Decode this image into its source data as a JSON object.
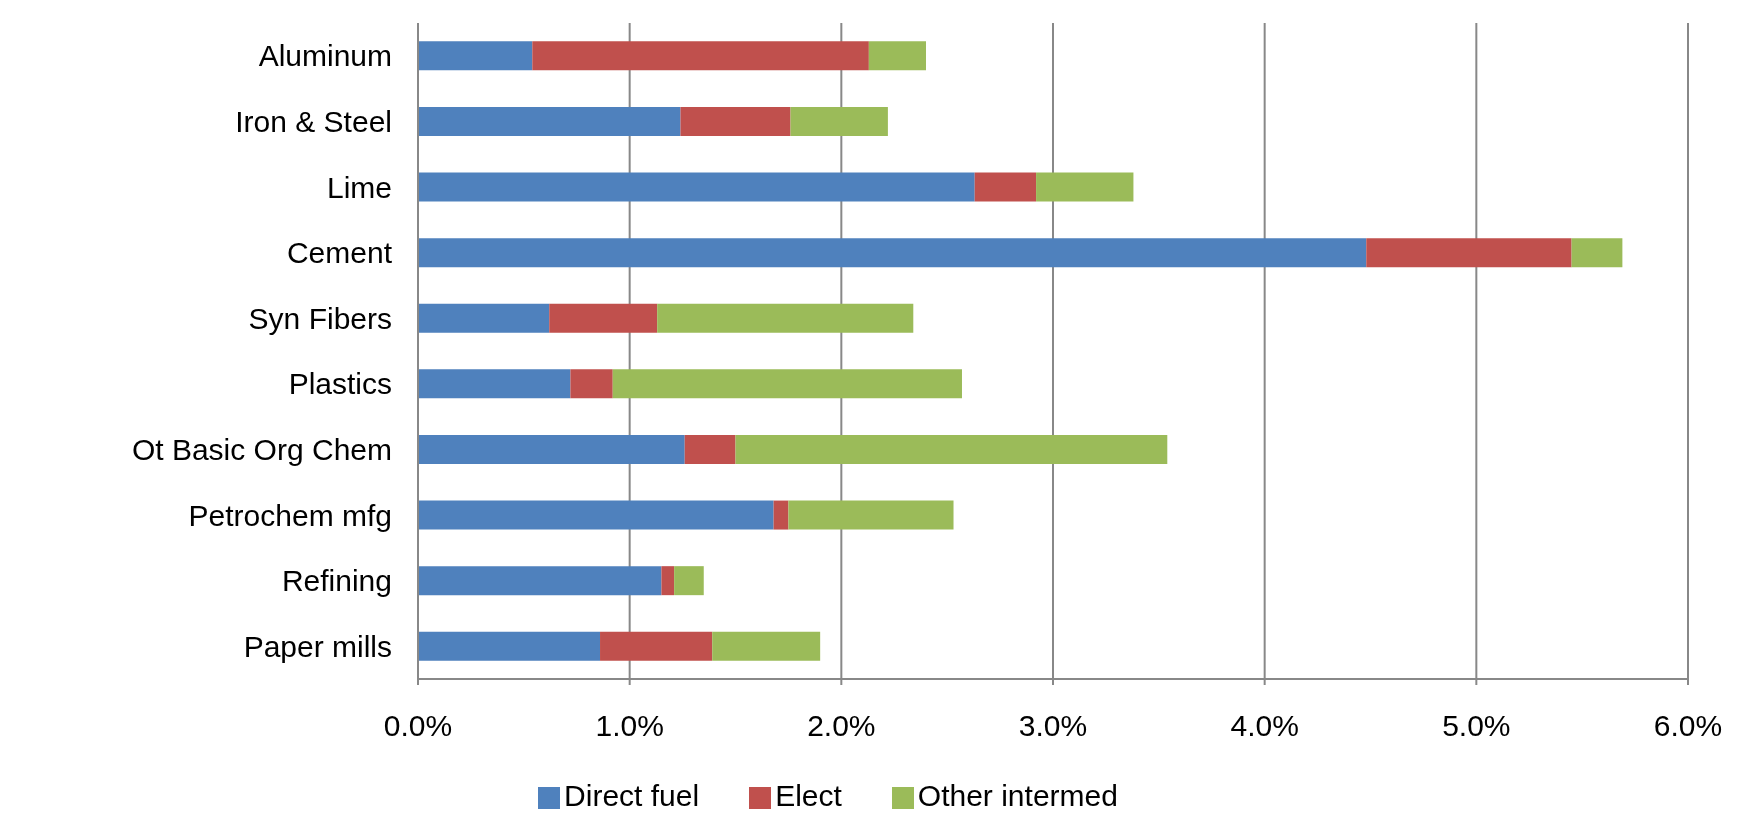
{
  "chart_data": {
    "type": "bar",
    "orientation": "horizontal",
    "stacked": true,
    "categories": [
      "Aluminum",
      "Iron & Steel",
      "Lime",
      "Cement",
      "Syn Fibers",
      "Plastics",
      "Ot Basic  Org Chem",
      "Petrochem mfg",
      "Refining",
      "Paper mills"
    ],
    "series": [
      {
        "name": "Direct fuel",
        "color": "#4f81bd",
        "values": [
          0.54,
          1.24,
          2.63,
          4.48,
          0.62,
          0.72,
          1.26,
          1.68,
          1.15,
          0.86
        ]
      },
      {
        "name": "Elect",
        "color": "#c0504d",
        "values": [
          1.59,
          0.52,
          0.29,
          0.97,
          0.51,
          0.2,
          0.24,
          0.07,
          0.06,
          0.53
        ]
      },
      {
        "name": "Other intermed",
        "color": "#9bbb59",
        "values": [
          0.27,
          0.46,
          0.46,
          0.24,
          1.21,
          1.65,
          2.04,
          0.78,
          0.14,
          0.51
        ]
      }
    ],
    "xlim": [
      0,
      6
    ],
    "xticks": [
      {
        "value": 0,
        "label": "0.0%"
      },
      {
        "value": 1,
        "label": "1.0%"
      },
      {
        "value": 2,
        "label": "2.0%"
      },
      {
        "value": 3,
        "label": "3.0%"
      },
      {
        "value": 4,
        "label": "4.0%"
      },
      {
        "value": 5,
        "label": "5.0%"
      },
      {
        "value": 6,
        "label": "6.0%"
      }
    ],
    "grid": "x",
    "legend": "bottom"
  }
}
